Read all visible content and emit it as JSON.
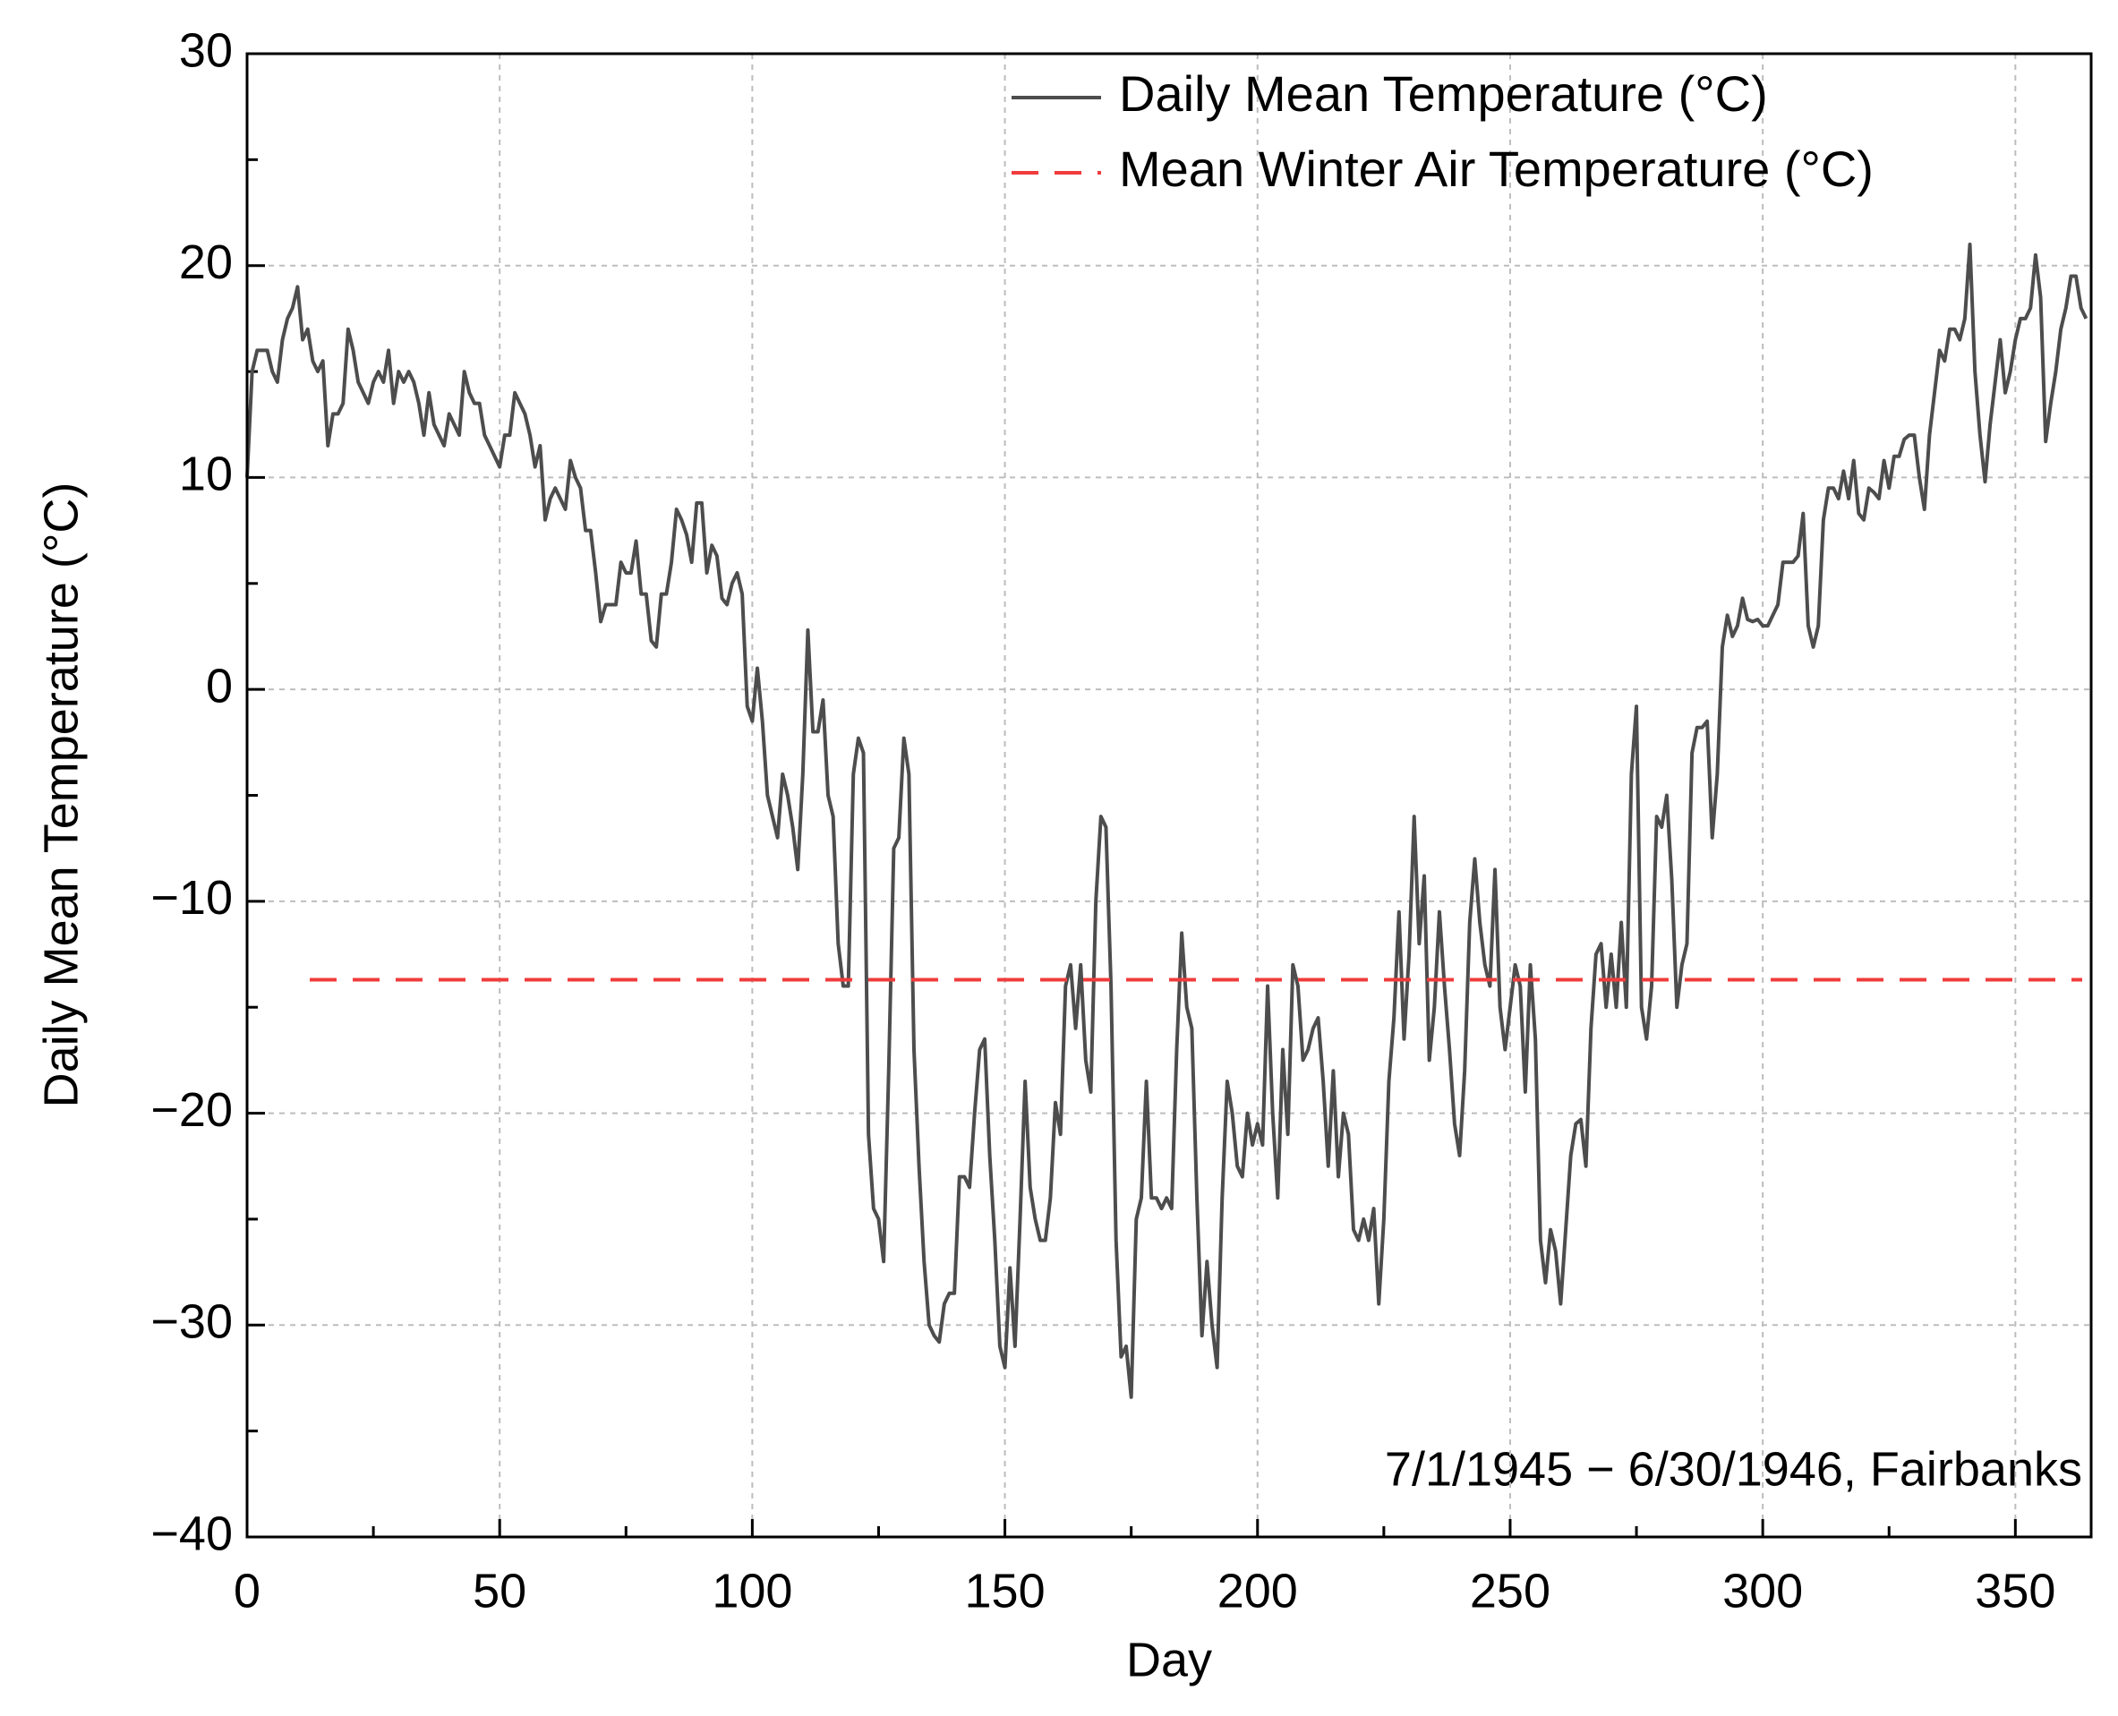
{
  "chart_data": {
    "type": "line",
    "xlabel": "Day",
    "ylabel": "Daily Mean Temperature (°C)",
    "annotation": "7/1/1945 − 6/30/1946, Fairbanks",
    "xlim": [
      0,
      365
    ],
    "ylim": [
      -40,
      30
    ],
    "xticks": [
      0,
      50,
      100,
      150,
      200,
      250,
      300,
      350
    ],
    "xminorticks": [
      25,
      75,
      125,
      175,
      225,
      275,
      325
    ],
    "yticks": [
      {
        "value": -40,
        "label": "−40"
      },
      {
        "value": -30,
        "label": "−30"
      },
      {
        "value": -20,
        "label": "−20"
      },
      {
        "value": -10,
        "label": "−10"
      },
      0,
      10,
      20,
      30
    ],
    "yminorticks": [
      -35,
      -25,
      -15,
      -5,
      5,
      15,
      25
    ],
    "grid": true,
    "legend": "upper right",
    "x": [
      0,
      1,
      2,
      3,
      4,
      5,
      6,
      7,
      8,
      9,
      10,
      11,
      12,
      13,
      14,
      15,
      16,
      17,
      18,
      19,
      20,
      21,
      22,
      23,
      24,
      25,
      26,
      27,
      28,
      29,
      30,
      31,
      32,
      33,
      34,
      35,
      36,
      37,
      38,
      39,
      40,
      41,
      42,
      43,
      44,
      45,
      46,
      47,
      48,
      49,
      50,
      51,
      52,
      53,
      54,
      55,
      56,
      57,
      58,
      59,
      60,
      61,
      62,
      63,
      64,
      65,
      66,
      67,
      68,
      69,
      70,
      71,
      72,
      73,
      74,
      75,
      76,
      77,
      78,
      79,
      80,
      81,
      82,
      83,
      84,
      85,
      86,
      87,
      88,
      89,
      90,
      91,
      92,
      93,
      94,
      95,
      96,
      97,
      98,
      99,
      100,
      101,
      102,
      103,
      104,
      105,
      106,
      107,
      108,
      109,
      110,
      111,
      112,
      113,
      114,
      115,
      116,
      117,
      118,
      119,
      120,
      121,
      122,
      123,
      124,
      125,
      126,
      127,
      128,
      129,
      130,
      131,
      132,
      133,
      134,
      135,
      136,
      137,
      138,
      139,
      140,
      141,
      142,
      143,
      144,
      145,
      146,
      147,
      148,
      149,
      150,
      151,
      152,
      153,
      154,
      155,
      156,
      157,
      158,
      159,
      160,
      161,
      162,
      163,
      164,
      165,
      166,
      167,
      168,
      169,
      170,
      171,
      172,
      173,
      174,
      175,
      176,
      177,
      178,
      179,
      180,
      181,
      182,
      183,
      184,
      185,
      186,
      187,
      188,
      189,
      190,
      191,
      192,
      193,
      194,
      195,
      196,
      197,
      198,
      199,
      200,
      201,
      202,
      203,
      204,
      205,
      206,
      207,
      208,
      209,
      210,
      211,
      212,
      213,
      214,
      215,
      216,
      217,
      218,
      219,
      220,
      221,
      222,
      223,
      224,
      225,
      226,
      227,
      228,
      229,
      230,
      231,
      232,
      233,
      234,
      235,
      236,
      237,
      238,
      239,
      240,
      241,
      242,
      243,
      244,
      245,
      246,
      247,
      248,
      249,
      250,
      251,
      252,
      253,
      254,
      255,
      256,
      257,
      258,
      259,
      260,
      261,
      262,
      263,
      264,
      265,
      266,
      267,
      268,
      269,
      270,
      271,
      272,
      273,
      274,
      275,
      276,
      277,
      278,
      279,
      280,
      281,
      282,
      283,
      284,
      285,
      286,
      287,
      288,
      289,
      290,
      291,
      292,
      293,
      294,
      295,
      296,
      297,
      298,
      299,
      300,
      301,
      302,
      303,
      304,
      305,
      306,
      307,
      308,
      309,
      310,
      311,
      312,
      313,
      314,
      315,
      316,
      317,
      318,
      319,
      320,
      321,
      322,
      323,
      324,
      325,
      326,
      327,
      328,
      329,
      330,
      331,
      332,
      333,
      334,
      335,
      336,
      337,
      338,
      339,
      340,
      341,
      342,
      343,
      344,
      345,
      346,
      347,
      348,
      349,
      350,
      351,
      352,
      353,
      354,
      355,
      356,
      357,
      358,
      359,
      360,
      361,
      362,
      363,
      364
    ],
    "series": [
      {
        "name": "Daily Mean Temperature (°C)",
        "color": "#4d4d4d",
        "values": [
          10,
          15,
          16,
          16,
          16,
          15,
          14.5,
          16.5,
          17.5,
          18,
          19,
          16.5,
          17,
          15.5,
          15,
          15.5,
          11.5,
          13,
          13,
          13.5,
          17,
          16,
          14.5,
          14,
          13.5,
          14.5,
          15,
          14.5,
          16,
          13.5,
          15,
          14.5,
          15,
          14.5,
          13.5,
          12,
          14,
          12.5,
          12,
          11.5,
          13,
          12.5,
          12,
          15,
          14,
          13.5,
          13.5,
          12,
          11.5,
          11,
          10.5,
          12,
          12,
          14,
          13.5,
          13,
          12,
          10.5,
          11.5,
          8,
          9,
          9.5,
          9,
          8.5,
          10.8,
          10,
          9.5,
          7.5,
          7.5,
          5.5,
          3.2,
          4,
          4,
          4,
          6,
          5.5,
          5.5,
          7,
          4.5,
          4.5,
          2.3,
          2,
          4.5,
          4.5,
          6,
          8.5,
          8,
          7.3,
          6,
          8.8,
          8.8,
          5.5,
          6.8,
          6.3,
          4.3,
          4,
          5,
          5.5,
          4.5,
          -0.8,
          -1.5,
          1,
          -1.5,
          -5,
          -6,
          -7,
          -4,
          -5,
          -6.5,
          -8.5,
          -4,
          2.8,
          -2,
          -2,
          -0.5,
          -5,
          -6,
          -12,
          -14,
          -14,
          -4,
          -2.3,
          -3,
          -21,
          -24.5,
          -25,
          -27,
          -18,
          -7.5,
          -7,
          -2.3,
          -4,
          -17,
          -22.5,
          -27,
          -30,
          -30.5,
          -30.8,
          -29,
          -28.5,
          -28.5,
          -23,
          -23,
          -23.5,
          -20,
          -17,
          -16.5,
          -22,
          -26,
          -31,
          -32,
          -27.3,
          -31,
          -25,
          -18.5,
          -23.5,
          -25,
          -26,
          -26,
          -24,
          -19.5,
          -21,
          -14,
          -13,
          -16,
          -13,
          -17.5,
          -19,
          -10,
          -6,
          -6.5,
          -14,
          -26,
          -31.5,
          -31,
          -33.4,
          -25,
          -24,
          -18.5,
          -24,
          -24,
          -24.5,
          -24,
          -24.5,
          -17,
          -11.5,
          -15,
          -16,
          -24,
          -30.5,
          -27,
          -30,
          -32,
          -24,
          -18.5,
          -20,
          -22.5,
          -23,
          -20,
          -21.5,
          -20.5,
          -21.5,
          -14,
          -20,
          -24,
          -17,
          -21,
          -13,
          -14,
          -17.5,
          -17,
          -16,
          -15.5,
          -18.5,
          -22.5,
          -18,
          -23,
          -20,
          -21,
          -25.5,
          -26,
          -25,
          -26,
          -24.5,
          -29,
          -25,
          -18.5,
          -15.5,
          -10.5,
          -16.5,
          -12.5,
          -6,
          -12,
          -8.8,
          -17.5,
          -15,
          -10.5,
          -14,
          -17,
          -20.5,
          -22,
          -18,
          -11,
          -8,
          -11,
          -13,
          -14,
          -8.5,
          -15,
          -17,
          -15,
          -13,
          -14,
          -19,
          -13,
          -16.5,
          -26,
          -28,
          -25.5,
          -26.5,
          -29,
          -25.5,
          -22,
          -20.5,
          -20.3,
          -22.5,
          -16,
          -12.5,
          -12,
          -15,
          -12.5,
          -15,
          -11,
          -15,
          -4,
          -0.8,
          -15,
          -16.5,
          -14,
          -6,
          -6.5,
          -5,
          -9,
          -15,
          -13,
          -12,
          -3,
          -1.8,
          -1.8,
          -1.5,
          -7,
          -4,
          2,
          3.5,
          2.5,
          3,
          4.3,
          3.3,
          3.2,
          3.3,
          3,
          3,
          3.5,
          4,
          6,
          6,
          6,
          6.3,
          8.3,
          3,
          2,
          3,
          8,
          9.5,
          9.5,
          9,
          10.3,
          9,
          10.8,
          8.3,
          8,
          9.5,
          9.3,
          9,
          10.8,
          9.5,
          11,
          11,
          11.8,
          12,
          12,
          10,
          8.5,
          12,
          14,
          16,
          15.5,
          17,
          17,
          16.5,
          17.5,
          21,
          15,
          12,
          9.8,
          12.5,
          14.5,
          16.5,
          14,
          15,
          16.5,
          17.5,
          17.5,
          18,
          20.5,
          18.5,
          11.7,
          13.5,
          15,
          17,
          18,
          19.5,
          19.5,
          18,
          17.5
        ]
      },
      {
        "name": "Mean Winter Air Temperature (°C)",
        "color": "#f03c3c",
        "dashed": true,
        "value": -13.7
      }
    ]
  }
}
